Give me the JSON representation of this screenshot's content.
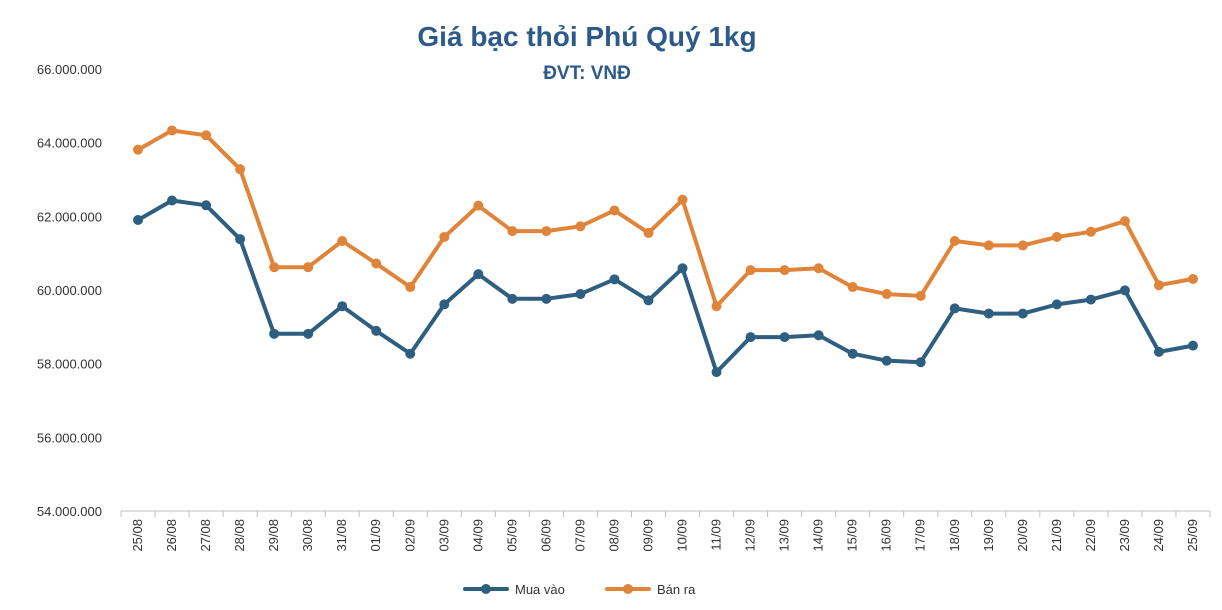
{
  "chart_data": {
    "type": "line",
    "title": "Giá bạc thỏi Phú Quý 1kg",
    "subtitle": "ĐVT: VNĐ",
    "categories": [
      "25/08",
      "26/08",
      "27/08",
      "28/08",
      "29/08",
      "30/08",
      "31/08",
      "01/09",
      "02/09",
      "03/09",
      "04/09",
      "05/09",
      "06/09",
      "07/09",
      "08/09",
      "09/09",
      "10/09",
      "11/09",
      "12/09",
      "13/09",
      "14/09",
      "15/09",
      "16/09",
      "17/09",
      "18/09",
      "19/09",
      "20/09",
      "21/09",
      "22/09",
      "23/09",
      "24/09",
      "25/09"
    ],
    "series": [
      {
        "name": "Mua vào",
        "color": "#2e5f80",
        "values": [
          61900000,
          62430000,
          62300000,
          61380000,
          58810000,
          58810000,
          59560000,
          58890000,
          58270000,
          59610000,
          60430000,
          59760000,
          59760000,
          59890000,
          60290000,
          59720000,
          60590000,
          57770000,
          58720000,
          58720000,
          58770000,
          58270000,
          58080000,
          58040000,
          59500000,
          59360000,
          59360000,
          59610000,
          59740000,
          59990000,
          58320000,
          58490000
        ]
      },
      {
        "name": "Bán ra",
        "color": "#e0843a",
        "values": [
          63810000,
          64330000,
          64200000,
          63280000,
          60620000,
          60620000,
          61330000,
          60720000,
          60080000,
          61440000,
          62290000,
          61600000,
          61600000,
          61730000,
          62160000,
          61550000,
          62450000,
          59560000,
          60540000,
          60540000,
          60590000,
          60080000,
          59890000,
          59840000,
          61330000,
          61210000,
          61210000,
          61440000,
          61580000,
          61870000,
          60130000,
          60300000
        ]
      }
    ],
    "y_ticks": [
      "54.000.000",
      "56.000.000",
      "58.000.000",
      "60.000.000",
      "62.000.000",
      "64.000.000",
      "66.000.000"
    ],
    "ylim": [
      54000000,
      66000000
    ],
    "legend_position": "bottom",
    "grid": false
  }
}
